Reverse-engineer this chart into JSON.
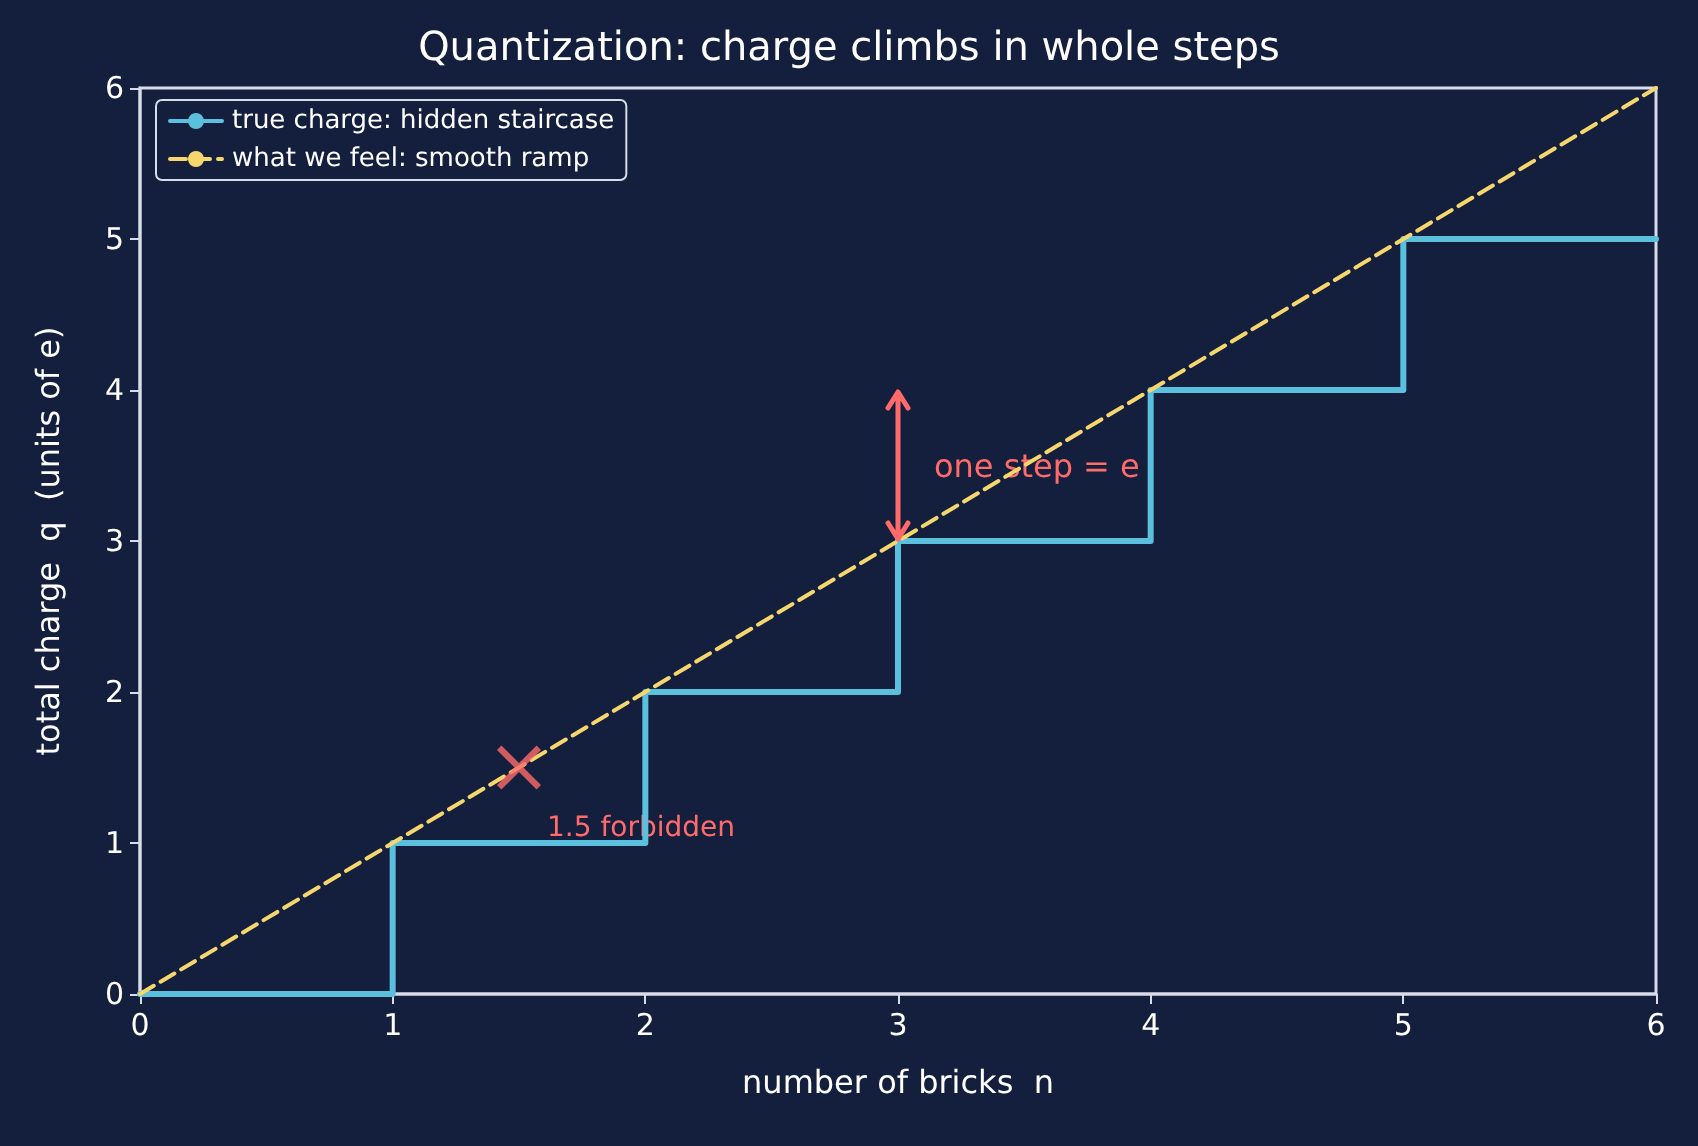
{
  "chart_data": {
    "type": "line",
    "title": "Quantization: charge climbs in whole steps",
    "xlabel": "number of bricks  n",
    "ylabel": "total charge  q  (units of e)",
    "xlim": [
      0,
      6
    ],
    "xticks": [
      0,
      1,
      2,
      3,
      4,
      5,
      6
    ],
    "ylim": [
      0,
      6
    ],
    "yticks": [
      0,
      1,
      2,
      3,
      4,
      5,
      6
    ],
    "grid": false,
    "legend": "top left",
    "series": [
      {
        "name": "true charge: hidden staircase",
        "type": "step",
        "color": "#5bc0de",
        "x": [
          0,
          1,
          2,
          3,
          4,
          5,
          6
        ],
        "values": [
          0,
          1,
          2,
          3,
          4,
          5,
          5
        ],
        "line_style": "solid",
        "marker": "none"
      },
      {
        "name": "what we feel: smooth ramp",
        "type": "line",
        "color": "#f5d76e",
        "x": [
          0,
          6
        ],
        "values": [
          0,
          6
        ],
        "line_style": "dashed",
        "marker": "none"
      },
      {
        "type": "scatter",
        "color": "#ff6b6b",
        "x": [
          1.5
        ],
        "values": [
          1.5
        ],
        "marker": "cross"
      }
    ],
    "annotations": [
      "one step = e",
      {
        "text": "1.5 forbidden",
        "x": 1.5,
        "y": 1.5
      }
    ]
  }
}
